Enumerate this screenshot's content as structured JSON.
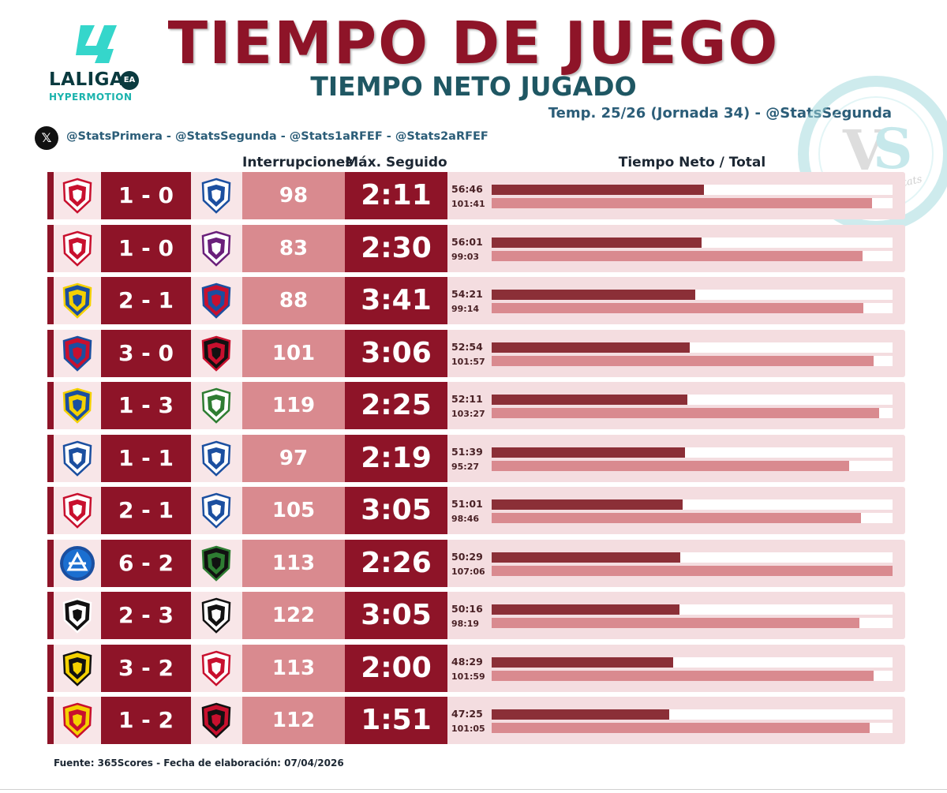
{
  "header": {
    "logo_word": "LALIGA",
    "logo_sub": "HYPERMOTION",
    "logo_ea": "EA",
    "title": "TIEMPO DE JUEGO",
    "subtitle": "TIEMPO NETO JUGADO",
    "season": "Temp. 25/26 (Jornada 34) - @StatsSegunda",
    "x_glyph": "𝕏",
    "handles": "@StatsPrimera - @StatsSegunda - @Stats1aRFEF - @Stats2aRFEF",
    "watermark": "Vintage Stats"
  },
  "columns": {
    "interruptions": "Interrupciones",
    "max_continuous": "Máx. Seguido",
    "net_total": "Tiempo Neto / Total"
  },
  "footer": {
    "source": "Fuente: 365Scores - Fecha de elaboración: 07/04/2026"
  },
  "colors": {
    "brand": "#8e1428",
    "interruptions_box": "#d98a8f",
    "net_bar": "#8b2f37",
    "total_bar": "#d98a8f",
    "row_bg": "#f4dde0"
  },
  "chart_data": {
    "type": "bar",
    "scale_max_minutes": 107.1,
    "matches": [
      {
        "home_crest": "sporting-crest",
        "away_crest": "real-sociedad-crest",
        "score": "1 - 0",
        "interruptions": "98",
        "max_continuous": "2:11",
        "net": "56:46",
        "total": "101:41",
        "net_min": 56.77,
        "total_min": 101.68
      },
      {
        "home_crest": "cultural-leonesa-crest",
        "away_crest": "valladolid-crest",
        "score": "1 - 0",
        "interruptions": "83",
        "max_continuous": "2:30",
        "net": "56:01",
        "total": "99:03",
        "net_min": 56.02,
        "total_min": 99.05
      },
      {
        "home_crest": "las-palmas-crest",
        "away_crest": "huesca-crest",
        "score": "2 - 1",
        "interruptions": "88",
        "max_continuous": "3:41",
        "net": "54:21",
        "total": "99:14",
        "net_min": 54.35,
        "total_min": 99.23
      },
      {
        "home_crest": "eibar-crest",
        "away_crest": "ceuta-crest",
        "score": "3 - 0",
        "interruptions": "101",
        "max_continuous": "3:06",
        "net": "52:54",
        "total": "101:57",
        "net_min": 52.9,
        "total_min": 101.95
      },
      {
        "home_crest": "cadiz-crest",
        "away_crest": "cordoba-crest",
        "score": "1 - 3",
        "interruptions": "119",
        "max_continuous": "2:25",
        "net": "52:11",
        "total": "103:27",
        "net_min": 52.18,
        "total_min": 103.45
      },
      {
        "home_crest": "deportivo-crest",
        "away_crest": "malaga-crest",
        "score": "1 - 1",
        "interruptions": "97",
        "max_continuous": "2:19",
        "net": "51:39",
        "total": "95:27",
        "net_min": 51.65,
        "total_min": 95.45
      },
      {
        "home_crest": "almeria-crest",
        "away_crest": "leganes-crest",
        "score": "2 - 1",
        "interruptions": "105",
        "max_continuous": "3:05",
        "net": "51:01",
        "total": "98:46",
        "net_min": 51.02,
        "total_min": 98.77
      },
      {
        "home_crest": "andorra-crest",
        "away_crest": "racing-crest",
        "score": "6 - 2",
        "interruptions": "113",
        "max_continuous": "2:26",
        "net": "50:29",
        "total": "107:06",
        "net_min": 50.48,
        "total_min": 107.1
      },
      {
        "home_crest": "albacete-crest",
        "away_crest": "burgos-crest",
        "score": "2 - 3",
        "interruptions": "122",
        "max_continuous": "3:05",
        "net": "50:16",
        "total": "98:19",
        "net_min": 50.27,
        "total_min": 98.32
      },
      {
        "home_crest": "castellon-crest",
        "away_crest": "granada-crest",
        "score": "3 - 2",
        "interruptions": "113",
        "max_continuous": "2:00",
        "net": "48:29",
        "total": "101:59",
        "net_min": 48.48,
        "total_min": 101.98
      },
      {
        "home_crest": "zaragoza-crest",
        "away_crest": "mirandes-crest",
        "score": "1 - 2",
        "interruptions": "112",
        "max_continuous": "1:51",
        "net": "47:25",
        "total": "101:05",
        "net_min": 47.42,
        "total_min": 101.08
      }
    ]
  }
}
